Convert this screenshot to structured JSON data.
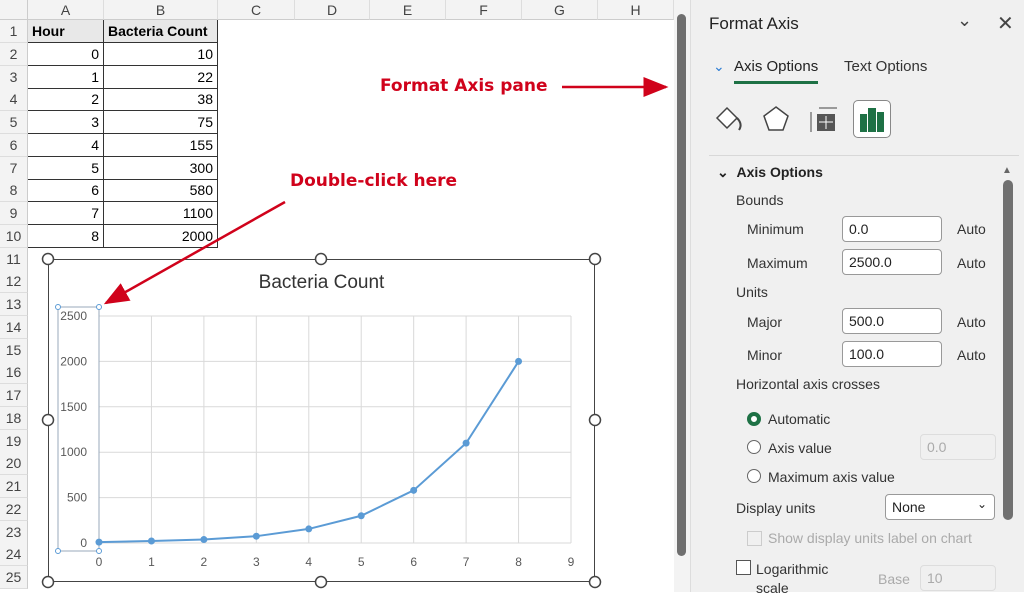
{
  "sheet": {
    "columns": [
      "A",
      "B",
      "C",
      "D",
      "E",
      "F",
      "G",
      "H"
    ],
    "rows": [
      "1",
      "2",
      "3",
      "4",
      "5",
      "6",
      "7",
      "8",
      "9",
      "10",
      "11",
      "12",
      "13",
      "14",
      "15",
      "16",
      "17",
      "18",
      "19",
      "20",
      "21",
      "22",
      "23",
      "24",
      "25"
    ],
    "headers": [
      "Hour",
      "Bacteria Count"
    ],
    "data": [
      [
        "0",
        "10"
      ],
      [
        "1",
        "22"
      ],
      [
        "2",
        "38"
      ],
      [
        "3",
        "75"
      ],
      [
        "4",
        "155"
      ],
      [
        "5",
        "300"
      ],
      [
        "6",
        "580"
      ],
      [
        "7",
        "1100"
      ],
      [
        "8",
        "2000"
      ]
    ]
  },
  "annotations": {
    "pane": "Format Axis pane",
    "double_click": "Double-click here",
    "color": "#d0021b"
  },
  "chart_data": {
    "type": "scatter",
    "title": "Bacteria Count",
    "x": [
      0,
      1,
      2,
      3,
      4,
      5,
      6,
      7,
      8
    ],
    "y": [
      10,
      22,
      38,
      75,
      155,
      300,
      580,
      1100,
      2000
    ],
    "xlim": [
      0,
      9
    ],
    "ylim": [
      0,
      2500
    ],
    "xticks": [
      "0",
      "1",
      "2",
      "3",
      "4",
      "5",
      "6",
      "7",
      "8",
      "9"
    ],
    "yticks": [
      "0",
      "500",
      "1000",
      "1500",
      "2000",
      "2500"
    ],
    "grid": true,
    "line_color": "#5b9bd5",
    "lines": true,
    "markers": true
  },
  "pane": {
    "title": "Format Axis",
    "tabs": [
      "Axis Options",
      "Text Options"
    ],
    "active_tab": "Axis Options",
    "icons": [
      "fill-line-icon",
      "effects-icon",
      "size-properties-icon",
      "axis-options-icon"
    ],
    "section": "Axis Options",
    "bounds_label": "Bounds",
    "minimum_label": "Minimum",
    "minimum": "0.0",
    "maximum_label": "Maximum",
    "maximum": "2500.0",
    "units_label": "Units",
    "major_label": "Major",
    "major": "500.0",
    "minor_label": "Minor",
    "minor": "100.0",
    "auto": "Auto",
    "crosses_label": "Horizontal axis crosses",
    "radio_automatic": "Automatic",
    "radio_axis_value": "Axis value",
    "axis_value": "0.0",
    "radio_max": "Maximum axis value",
    "display_units_label": "Display units",
    "display_units": "None",
    "show_units_label": "Show display units label on chart",
    "log_label": "Logarithmic scale",
    "base_label": "Base",
    "base": "10",
    "accent": "#1e7145"
  }
}
